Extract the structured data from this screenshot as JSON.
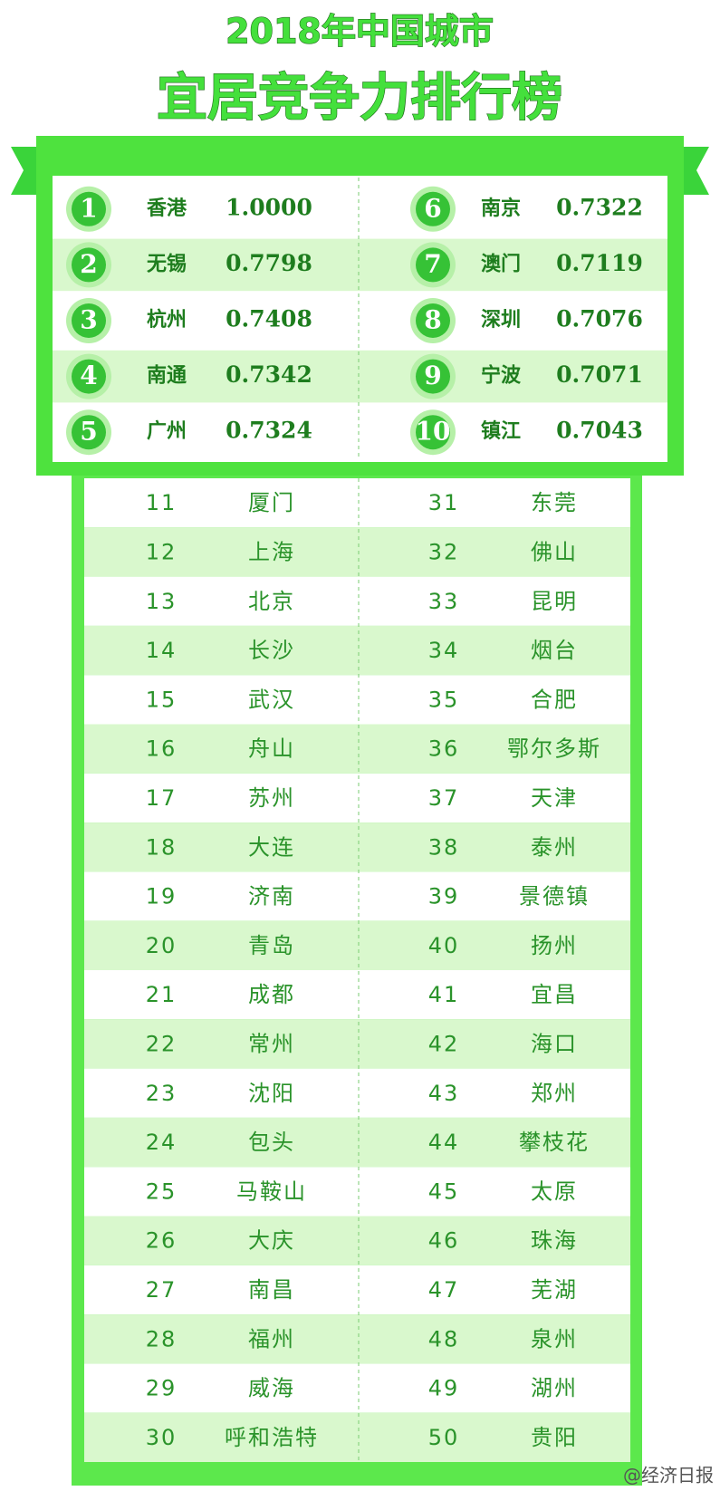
{
  "header": {
    "title": "2018年中国城市",
    "subtitle": "宜居竞争力排行榜"
  },
  "top10": [
    {
      "rank": 1,
      "city": "香港",
      "score": "1.0000"
    },
    {
      "rank": 2,
      "city": "无锡",
      "score": "0.7798"
    },
    {
      "rank": 3,
      "city": "杭州",
      "score": "0.7408"
    },
    {
      "rank": 4,
      "city": "南通",
      "score": "0.7342"
    },
    {
      "rank": 5,
      "city": "广州",
      "score": "0.7324"
    },
    {
      "rank": 6,
      "city": "南京",
      "score": "0.7322"
    },
    {
      "rank": 7,
      "city": "澳门",
      "score": "0.7119"
    },
    {
      "rank": 8,
      "city": "深圳",
      "score": "0.7076"
    },
    {
      "rank": 9,
      "city": "宁波",
      "score": "0.7071"
    },
    {
      "rank": 10,
      "city": "镇江",
      "score": "0.7043"
    }
  ],
  "table": {
    "rows": [
      {
        "rank": 11,
        "city": "厦门"
      },
      {
        "rank": 12,
        "city": "上海"
      },
      {
        "rank": 13,
        "city": "北京"
      },
      {
        "rank": 14,
        "city": "长沙"
      },
      {
        "rank": 15,
        "city": "武汉"
      },
      {
        "rank": 16,
        "city": "舟山"
      },
      {
        "rank": 17,
        "city": "苏州"
      },
      {
        "rank": 18,
        "city": "大连"
      },
      {
        "rank": 19,
        "city": "济南"
      },
      {
        "rank": 20,
        "city": "青岛"
      },
      {
        "rank": 21,
        "city": "成都"
      },
      {
        "rank": 22,
        "city": "常州"
      },
      {
        "rank": 23,
        "city": "沈阳"
      },
      {
        "rank": 24,
        "city": "包头"
      },
      {
        "rank": 25,
        "city": "马鞍山"
      },
      {
        "rank": 26,
        "city": "大庆"
      },
      {
        "rank": 27,
        "city": "南昌"
      },
      {
        "rank": 28,
        "city": "福州"
      },
      {
        "rank": 29,
        "city": "威海"
      },
      {
        "rank": 30,
        "city": "呼和浩特"
      },
      {
        "rank": 31,
        "city": "东莞"
      },
      {
        "rank": 32,
        "city": "佛山"
      },
      {
        "rank": 33,
        "city": "昆明"
      },
      {
        "rank": 34,
        "city": "烟台"
      },
      {
        "rank": 35,
        "city": "合肥"
      },
      {
        "rank": 36,
        "city": "鄂尔多斯"
      },
      {
        "rank": 37,
        "city": "天津"
      },
      {
        "rank": 38,
        "city": "泰州"
      },
      {
        "rank": 39,
        "city": "景德镇"
      },
      {
        "rank": 40,
        "city": "扬州"
      },
      {
        "rank": 41,
        "city": "宜昌"
      },
      {
        "rank": 42,
        "city": "海口"
      },
      {
        "rank": 43,
        "city": "郑州"
      },
      {
        "rank": 44,
        "city": "攀枝花"
      },
      {
        "rank": 45,
        "city": "太原"
      },
      {
        "rank": 46,
        "city": "珠海"
      },
      {
        "rank": 47,
        "city": "芜湖"
      },
      {
        "rank": 48,
        "city": "泉州"
      },
      {
        "rank": 49,
        "city": "湖州"
      },
      {
        "rank": 50,
        "city": "贵阳"
      }
    ]
  },
  "watermark": "@经济日报"
}
